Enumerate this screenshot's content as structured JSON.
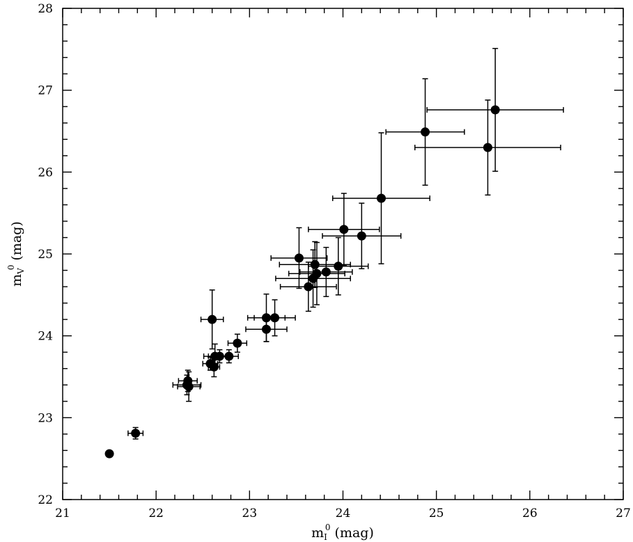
{
  "chart_data": {
    "type": "scatter",
    "title": "",
    "xlabel": "m_I^0 (mag)",
    "ylabel": "m_V^0 (mag)",
    "xlabel_parts": {
      "main": "m",
      "sub": "I",
      "sup": "0",
      "rest": " (mag)"
    },
    "ylabel_parts": {
      "main": "m",
      "sub": "V",
      "sup": "0",
      "rest": " (mag)"
    },
    "xlim": [
      21,
      27
    ],
    "ylim": [
      22,
      28
    ],
    "x_ticks": [
      21,
      22,
      23,
      24,
      25,
      26,
      27
    ],
    "y_ticks": [
      22,
      23,
      24,
      25,
      26,
      27,
      28
    ],
    "x_tick_labels": [
      "21",
      "22",
      "23",
      "24",
      "25",
      "26",
      "27"
    ],
    "y_tick_labels": [
      "22",
      "23",
      "24",
      "25",
      "26",
      "27",
      "28"
    ],
    "grid": false,
    "marker_color": "#000000",
    "points": [
      {
        "x": 21.5,
        "y": 22.56,
        "xerr": 0.02,
        "yerr": 0.02
      },
      {
        "x": 21.78,
        "y": 22.81,
        "xerr": 0.08,
        "yerr": 0.07
      },
      {
        "x": 22.33,
        "y": 23.4,
        "xerr": 0.15,
        "yerr": 0.12
      },
      {
        "x": 22.34,
        "y": 23.45,
        "xerr": 0.1,
        "yerr": 0.13
      },
      {
        "x": 22.35,
        "y": 23.38,
        "xerr": 0.12,
        "yerr": 0.18
      },
      {
        "x": 22.58,
        "y": 23.66,
        "xerr": 0.08,
        "yerr": 0.08
      },
      {
        "x": 22.62,
        "y": 23.62,
        "xerr": 0.06,
        "yerr": 0.12
      },
      {
        "x": 22.63,
        "y": 23.75,
        "xerr": 0.12,
        "yerr": 0.15
      },
      {
        "x": 22.68,
        "y": 23.75,
        "xerr": 0.12,
        "yerr": 0.08
      },
      {
        "x": 22.6,
        "y": 24.2,
        "xerr": 0.12,
        "yerr": 0.36
      },
      {
        "x": 22.78,
        "y": 23.75,
        "xerr": 0.1,
        "yerr": 0.08
      },
      {
        "x": 22.87,
        "y": 23.91,
        "xerr": 0.1,
        "yerr": 0.11
      },
      {
        "x": 23.18,
        "y": 24.22,
        "xerr": 0.2,
        "yerr": 0.29
      },
      {
        "x": 23.18,
        "y": 24.08,
        "xerr": 0.22,
        "yerr": 0.15
      },
      {
        "x": 23.27,
        "y": 24.22,
        "xerr": 0.22,
        "yerr": 0.22
      },
      {
        "x": 23.53,
        "y": 24.95,
        "xerr": 0.3,
        "yerr": 0.37
      },
      {
        "x": 23.63,
        "y": 24.6,
        "xerr": 0.3,
        "yerr": 0.3
      },
      {
        "x": 23.68,
        "y": 24.7,
        "xerr": 0.4,
        "yerr": 0.35
      },
      {
        "x": 23.7,
        "y": 24.87,
        "xerr": 0.38,
        "yerr": 0.28
      },
      {
        "x": 23.72,
        "y": 24.76,
        "xerr": 0.3,
        "yerr": 0.38
      },
      {
        "x": 23.82,
        "y": 24.78,
        "xerr": 0.28,
        "yerr": 0.3
      },
      {
        "x": 23.95,
        "y": 24.85,
        "xerr": 0.32,
        "yerr": 0.35
      },
      {
        "x": 24.01,
        "y": 25.3,
        "xerr": 0.38,
        "yerr": 0.44
      },
      {
        "x": 24.2,
        "y": 25.22,
        "xerr": 0.42,
        "yerr": 0.4
      },
      {
        "x": 24.41,
        "y": 25.68,
        "xerr": 0.52,
        "yerr": 0.8
      },
      {
        "x": 24.88,
        "y": 26.49,
        "xerr": 0.42,
        "yerr": 0.65
      },
      {
        "x": 25.55,
        "y": 26.3,
        "xerr": 0.78,
        "yerr": 0.58
      },
      {
        "x": 25.63,
        "y": 26.76,
        "xerr": 0.73,
        "yerr": 0.75
      }
    ]
  }
}
